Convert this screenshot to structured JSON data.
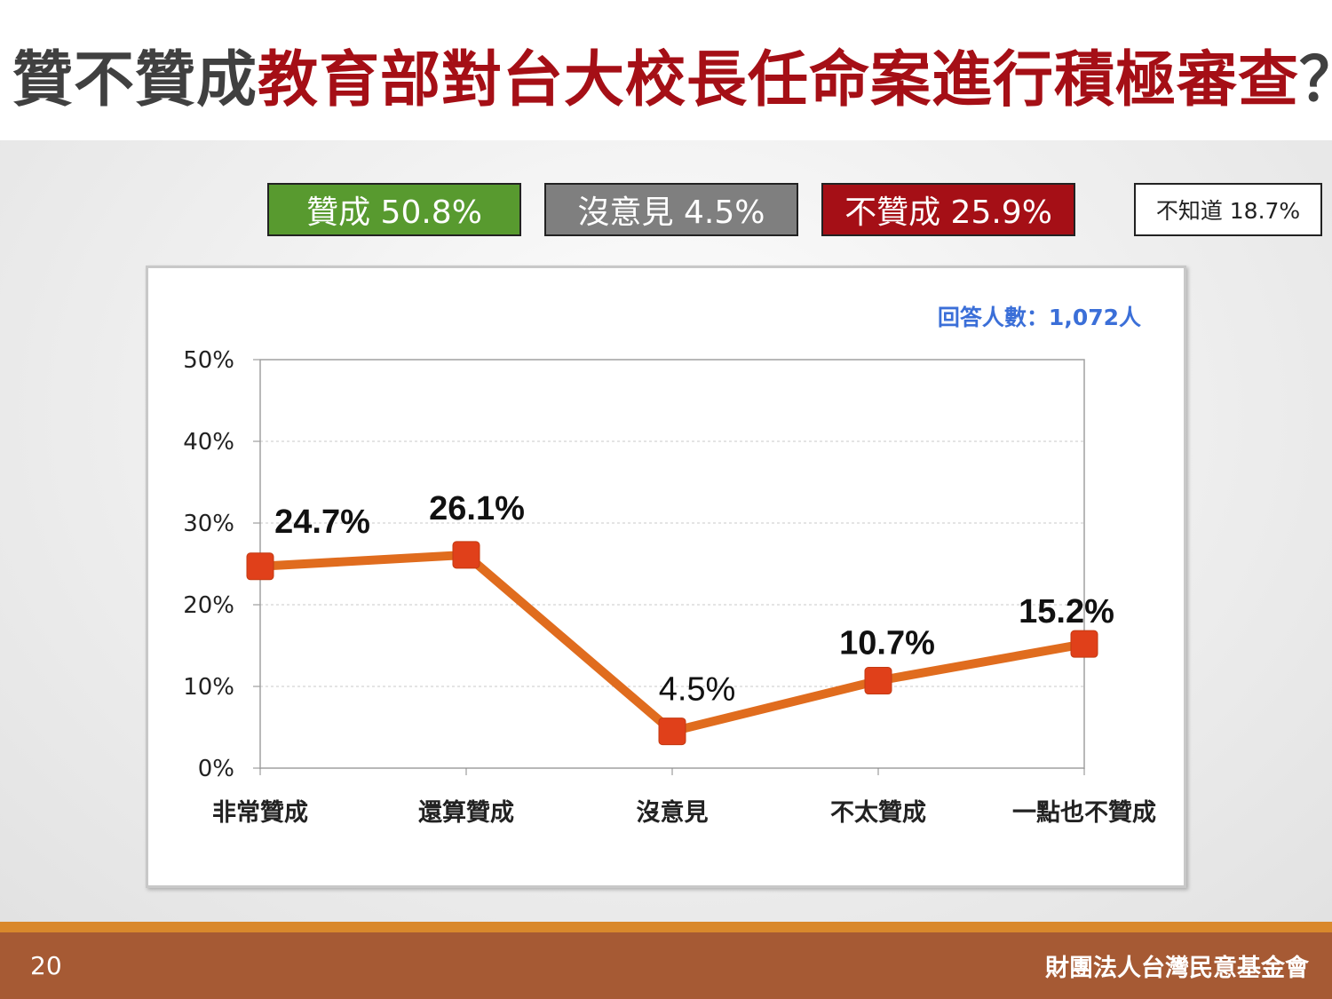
{
  "title": {
    "prefix": "贊不贊成",
    "main": "教育部對台大校長任命案進行積極審查",
    "suffix": "？"
  },
  "summary": [
    {
      "label": "贊成 50.8%",
      "color": "#589a2f"
    },
    {
      "label": "沒意見 4.5%",
      "color": "#7f7f7f"
    },
    {
      "label": "不贊成 25.9%",
      "color": "#a50f16"
    }
  ],
  "dont_know": "不知道 18.7%",
  "respondents": "回答人數：1,072人",
  "chart_data": {
    "type": "line",
    "categories": [
      "非常贊成",
      "還算贊成",
      "沒意見",
      "不太贊成",
      "一點也不贊成"
    ],
    "values": [
      24.7,
      26.1,
      4.5,
      10.7,
      15.2
    ],
    "value_labels": [
      "24.7%",
      "26.1%",
      "4.5%",
      "10.7%",
      "15.2%"
    ],
    "ylim": [
      0,
      50
    ],
    "yticks": [
      "0%",
      "10%",
      "20%",
      "30%",
      "40%",
      "50%"
    ],
    "grid": true,
    "line_color": "#e06c1e",
    "marker_color": "#e0401a"
  },
  "footer": {
    "page": "20",
    "org": "財團法人台灣民意基金會"
  }
}
